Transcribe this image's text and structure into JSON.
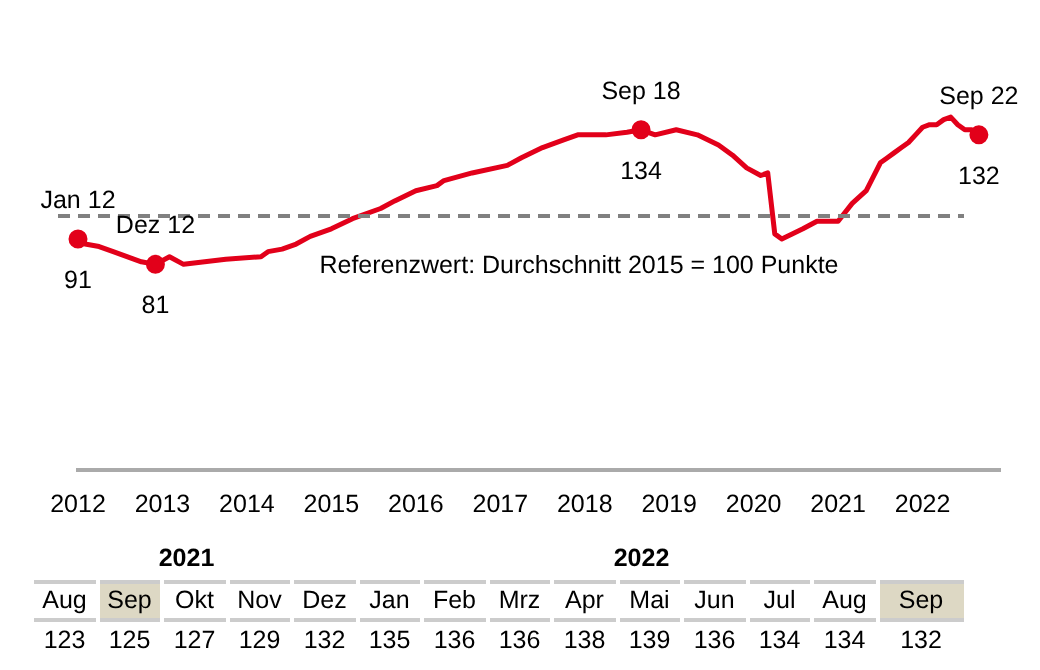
{
  "chart_data": [
    {
      "type": "line",
      "x": [
        "2012-01",
        "2012-02",
        "2012-04",
        "2012-06",
        "2012-10",
        "2012-12",
        "2013-02",
        "2013-04",
        "2013-07",
        "2013-10",
        "2014-03",
        "2014-04",
        "2014-06",
        "2014-08",
        "2014-10",
        "2015-01",
        "2015-04",
        "2015-08",
        "2015-10",
        "2016-01",
        "2016-04",
        "2016-05",
        "2016-09",
        "2017-02",
        "2017-04",
        "2017-07",
        "2017-10",
        "2017-12",
        "2018-01",
        "2018-04",
        "2018-07",
        "2018-09",
        "2018-11",
        "2019-02",
        "2019-05",
        "2019-08",
        "2019-10",
        "2019-12",
        "2020-02",
        "2020-03",
        "2020-04",
        "2020-05",
        "2020-08",
        "2020-10",
        "2021-01",
        "2021-03",
        "2021-05",
        "2021-07",
        "2021-08",
        "2021-09",
        "2021-10",
        "2021-11",
        "2021-12",
        "2022-01",
        "2022-02",
        "2022-03",
        "2022-04",
        "2022-05",
        "2022-06",
        "2022-07",
        "2022-08",
        "2022-09"
      ],
      "series": [
        {
          "color": "#e2001a",
          "values": [
            91,
            89,
            88,
            86,
            82,
            81,
            84,
            81,
            82,
            83,
            84,
            86,
            87,
            89,
            92,
            95,
            99,
            103,
            106,
            110,
            112,
            114,
            117,
            120,
            123,
            127,
            130,
            132,
            132,
            132,
            133,
            134,
            132,
            134,
            132,
            128,
            124,
            119,
            116,
            117,
            93,
            91,
            95,
            98,
            98,
            105,
            110,
            121,
            123,
            125,
            127,
            129,
            132,
            135,
            136,
            136,
            138,
            139,
            136,
            134,
            134,
            132
          ],
          "value_labels": [
            "91",
            null,
            null,
            null,
            null,
            "81",
            null,
            null,
            null,
            null,
            null,
            null,
            null,
            null,
            null,
            null,
            null,
            null,
            null,
            null,
            null,
            null,
            null,
            null,
            null,
            null,
            null,
            null,
            null,
            null,
            null,
            "134",
            null,
            null,
            null,
            null,
            null,
            null,
            null,
            null,
            null,
            null,
            null,
            null,
            null,
            null,
            null,
            null,
            null,
            null,
            null,
            null,
            null,
            null,
            null,
            null,
            null,
            null,
            null,
            null,
            null,
            "132"
          ]
        }
      ],
      "xlim": [
        "2012",
        "2022-12"
      ],
      "xticks": [
        "2012",
        "2013",
        "2014",
        "2015",
        "2016",
        "2017",
        "2018",
        "2019",
        "2020",
        "2021",
        "2022"
      ],
      "tick_labels": "x",
      "grid": false,
      "legend": false,
      "ref_lines": [
        {
          "axis": "y",
          "value": 100,
          "label": "Referenzwert: Durchschnitt 2015 = 100 Punkte",
          "color": "#808080",
          "line_style": "dashed"
        }
      ],
      "annotations": [
        {
          "text": "Jan 12",
          "x": "2012-01",
          "y": 91
        },
        {
          "text": "Dez 12",
          "x": "2012-12",
          "y": 81
        },
        {
          "text": "Sep 18",
          "x": "2018-09",
          "y": 134
        },
        {
          "text": "Sep 22",
          "x": "2022-09",
          "y": 132
        }
      ]
    },
    {
      "type": "other",
      "categories": [
        "Aug",
        "Sep",
        "Okt",
        "Nov",
        "Dez",
        "Jan",
        "Feb",
        "Mrz",
        "Apr",
        "Mai",
        "Jun",
        "Jul",
        "Aug",
        "Sep"
      ],
      "values": [
        123,
        125,
        127,
        129,
        132,
        135,
        136,
        136,
        138,
        139,
        136,
        134,
        134,
        132
      ],
      "colors": [
        "#ffffff",
        "#ddd8c4",
        "#ffffff",
        "#ffffff",
        "#ffffff",
        "#ffffff",
        "#ffffff",
        "#ffffff",
        "#ffffff",
        "#ffffff",
        "#ffffff",
        "#ffffff",
        "#ffffff",
        "#ddd8c4"
      ],
      "data_labels": true,
      "annotations": [
        {
          "text": "2021",
          "x": "Okt"
        },
        {
          "text": "2022",
          "x": "Mai"
        }
      ]
    }
  ]
}
